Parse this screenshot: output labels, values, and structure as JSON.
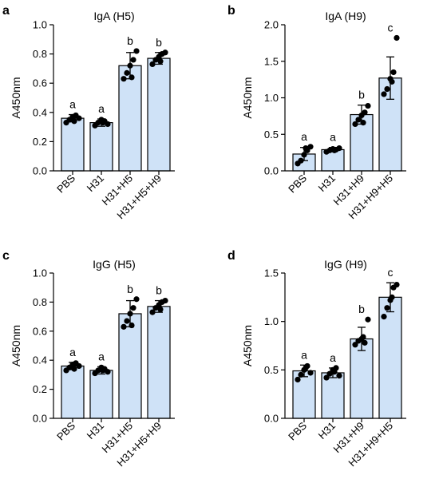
{
  "colors": {
    "bar_fill": "#cfe2f7",
    "bar_stroke": "#000000",
    "point": "#000000"
  },
  "chart_data": [
    {
      "type": "bar",
      "panel_label": "a",
      "title": "IgA (H5)",
      "xlabel": "",
      "ylabel": "A450nm",
      "ylim": [
        0,
        1.0
      ],
      "yticks": [
        0.0,
        0.2,
        0.4,
        0.6,
        0.8,
        1.0
      ],
      "ytick_labels": [
        "0.0",
        "0.2",
        "0.4",
        "0.6",
        "0.8",
        "1.0"
      ],
      "categories": [
        "PBS",
        "H31",
        "H31+H5",
        "H31+H5+H9"
      ],
      "values": [
        0.36,
        0.33,
        0.72,
        0.77
      ],
      "errors": [
        0.025,
        0.025,
        0.09,
        0.04
      ],
      "points": [
        [
          0.33,
          0.35,
          0.37,
          0.38,
          0.36,
          0.34
        ],
        [
          0.31,
          0.33,
          0.35,
          0.34,
          0.32,
          0.33
        ],
        [
          0.63,
          0.67,
          0.72,
          0.76,
          0.82,
          0.64
        ],
        [
          0.73,
          0.76,
          0.78,
          0.8,
          0.81,
          0.75
        ]
      ],
      "significance": [
        "a",
        "a",
        "b",
        "b"
      ]
    },
    {
      "type": "bar",
      "panel_label": "b",
      "title": "IgA (H9)",
      "xlabel": "",
      "ylabel": "A450nm",
      "ylim": [
        0,
        2.0
      ],
      "yticks": [
        0.0,
        0.5,
        1.0,
        1.5,
        2.0
      ],
      "ytick_labels": [
        "0.0",
        "0.5",
        "1.0",
        "1.5",
        "2.0"
      ],
      "categories": [
        "PBS",
        "H31",
        "H31+H9",
        "H31+H9+H5"
      ],
      "values": [
        0.23,
        0.29,
        0.77,
        1.27
      ],
      "errors": [
        0.09,
        0.03,
        0.13,
        0.29
      ],
      "points": [
        [
          0.1,
          0.14,
          0.22,
          0.28,
          0.33,
          0.31
        ],
        [
          0.26,
          0.28,
          0.3,
          0.29,
          0.31,
          0.28
        ],
        [
          0.64,
          0.7,
          0.76,
          0.8,
          0.89,
          0.66
        ],
        [
          1.05,
          1.12,
          1.26,
          1.35,
          1.82,
          1.22
        ]
      ],
      "significance": [
        "a",
        "a",
        "b",
        "c"
      ]
    },
    {
      "type": "bar",
      "panel_label": "c",
      "title": "IgG (H5)",
      "xlabel": "",
      "ylabel": "A450nm",
      "ylim": [
        0,
        1.0
      ],
      "yticks": [
        0.0,
        0.2,
        0.4,
        0.6,
        0.8,
        1.0
      ],
      "ytick_labels": [
        "0.0",
        "0.2",
        "0.4",
        "0.6",
        "0.8",
        "1.0"
      ],
      "categories": [
        "PBS",
        "H31",
        "H31+H5",
        "H31+H5+H9"
      ],
      "values": [
        0.36,
        0.33,
        0.72,
        0.77
      ],
      "errors": [
        0.025,
        0.025,
        0.09,
        0.04
      ],
      "points": [
        [
          0.33,
          0.35,
          0.37,
          0.38,
          0.36,
          0.34
        ],
        [
          0.31,
          0.33,
          0.35,
          0.34,
          0.32,
          0.33
        ],
        [
          0.63,
          0.67,
          0.72,
          0.76,
          0.82,
          0.64
        ],
        [
          0.73,
          0.76,
          0.78,
          0.8,
          0.81,
          0.75
        ]
      ],
      "significance": [
        "a",
        "a",
        "b",
        "b"
      ]
    },
    {
      "type": "bar",
      "panel_label": "d",
      "title": "IgG (H9)",
      "xlabel": "",
      "ylabel": "A450nm",
      "ylim": [
        0,
        1.5
      ],
      "yticks": [
        0.0,
        0.5,
        1.0,
        1.5
      ],
      "ytick_labels": [
        "0.0",
        "0.5",
        "1.0",
        "1.5"
      ],
      "categories": [
        "PBS",
        "H31",
        "H31+H9",
        "H31+H9+H5"
      ],
      "values": [
        0.49,
        0.47,
        0.82,
        1.25
      ],
      "errors": [
        0.06,
        0.05,
        0.12,
        0.15
      ],
      "points": [
        [
          0.4,
          0.45,
          0.5,
          0.54,
          0.47,
          0.52
        ],
        [
          0.42,
          0.46,
          0.5,
          0.52,
          0.44,
          0.48
        ],
        [
          0.76,
          0.8,
          0.82,
          0.78,
          1.02,
          0.84
        ],
        [
          1.05,
          1.14,
          1.22,
          1.35,
          1.38,
          1.25
        ]
      ],
      "significance": [
        "a",
        "a",
        "b",
        "c"
      ]
    }
  ]
}
